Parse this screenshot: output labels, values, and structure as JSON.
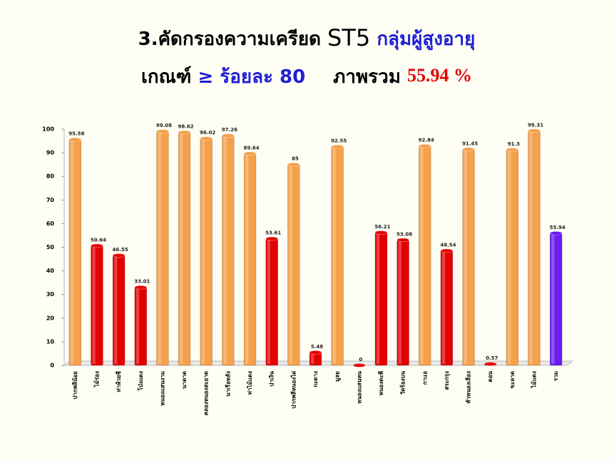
{
  "chart_data": {
    "type": "bar",
    "title": [
      "3.คัดกรองความเครียด",
      "ST5",
      "กลุ่มผู้สูงอายุ"
    ],
    "subtitle": [
      "เกณฑ์",
      "≥ ร้อยละ 80",
      "ภาพรวม",
      "55.94 %"
    ],
    "categories": [
      "ปากพลีน้อย",
      "ไม้ร่อง",
      "ท่าห้วยชี",
      "โป่งแดง",
      "หนองแสนงาม",
      "นาดาด",
      "คลองหนองสะอาด",
      "นาเรือหลัง",
      "ท่าไม้แดง",
      "ปาเงิน",
      "ปากพลีหนองไผ่",
      "กะตาง",
      "มูลย",
      "หนองแสนหน",
      "หนองตะพี",
      "วัดร้องบน",
      "กาแอ",
      "สระกรุง",
      "หัวหนองเลือง",
      "ดอน",
      "ขะลาด",
      "ไม้แดง",
      "รวม"
    ],
    "values": [
      95.58,
      50.64,
      46.55,
      33.01,
      99.08,
      98.62,
      96.02,
      97.26,
      89.64,
      53.61,
      85,
      5.48,
      92.55,
      0,
      56.21,
      53.08,
      92.84,
      48.54,
      91.45,
      0.57,
      91.3,
      99.31,
      55.94
    ],
    "colors": [
      "#f5a04b",
      "#e30000",
      "#e30000",
      "#e30000",
      "#f5a04b",
      "#f5a04b",
      "#f5a04b",
      "#f5a04b",
      "#f5a04b",
      "#e30000",
      "#f5a04b",
      "#e30000",
      "#f5a04b",
      "#e30000",
      "#e30000",
      "#e30000",
      "#f5a04b",
      "#e30000",
      "#f5a04b",
      "#e30000",
      "#f5a04b",
      "#f5a04b",
      "#6a1cf2"
    ],
    "ylim": [
      0,
      100
    ],
    "yticks": [
      0,
      10,
      20,
      30,
      40,
      50,
      60,
      70,
      80,
      90,
      100
    ]
  }
}
